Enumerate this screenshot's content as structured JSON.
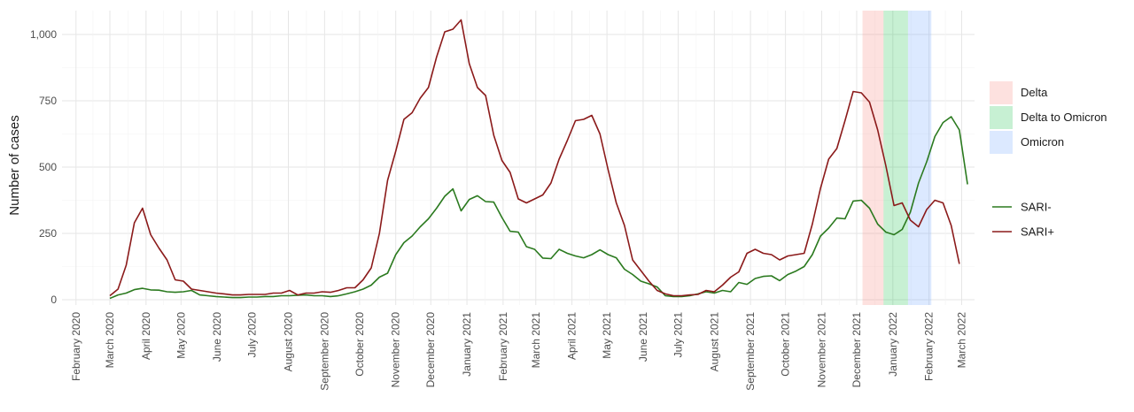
{
  "chart_data": {
    "type": "line",
    "title": "",
    "xlabel": "",
    "ylabel": "Number of cases",
    "ylim": [
      -20,
      1090
    ],
    "yticks": [
      0,
      250,
      500,
      750,
      1000
    ],
    "ytick_labels": [
      "0",
      "250",
      "500",
      "750",
      "1,000"
    ],
    "xlim": [
      "2020-01-20",
      "2022-03-12"
    ],
    "xticks": [
      "2020-02-01",
      "2020-03-01",
      "2020-04-01",
      "2020-05-01",
      "2020-06-01",
      "2020-07-01",
      "2020-08-01",
      "2020-09-01",
      "2020-10-01",
      "2020-11-01",
      "2020-12-01",
      "2021-01-01",
      "2021-02-01",
      "2021-03-01",
      "2021-04-01",
      "2021-05-01",
      "2021-06-01",
      "2021-07-01",
      "2021-08-01",
      "2021-09-01",
      "2021-10-01",
      "2021-11-01",
      "2021-12-01",
      "2022-01-01",
      "2022-02-01",
      "2022-03-01"
    ],
    "xtick_labels": [
      "February 2020",
      "March 2020",
      "April 2020",
      "May 2020",
      "June 2020",
      "July 2020",
      "August 2020",
      "September 2020",
      "October 2020",
      "November 2020",
      "December 2020",
      "January 2021",
      "February 2021",
      "March 2021",
      "April 2021",
      "May 2021",
      "June 2021",
      "July 2021",
      "August 2021",
      "September 2021",
      "October 2021",
      "November 2021",
      "December 2021",
      "January 2022",
      "February 2022",
      "March 2022"
    ],
    "grid": true,
    "legend_position": "right",
    "variant_periods": [
      {
        "name": "Delta",
        "start": "2021-12-06",
        "end": "2021-12-24",
        "color": "#f8766d"
      },
      {
        "name": "Delta to Omicron",
        "start": "2021-12-24",
        "end": "2022-01-14",
        "color": "#00ba38"
      },
      {
        "name": "Omicron",
        "start": "2022-01-14",
        "end": "2022-02-03",
        "color": "#619cff"
      }
    ],
    "series": [
      {
        "name": "SARI-",
        "color": "#2b7a1f",
        "values": [
          [
            "2020-03-01",
            5
          ],
          [
            "2020-03-08",
            18
          ],
          [
            "2020-03-15",
            25
          ],
          [
            "2020-03-22",
            38
          ],
          [
            "2020-03-29",
            43
          ],
          [
            "2020-04-05",
            37
          ],
          [
            "2020-04-12",
            36
          ],
          [
            "2020-04-19",
            30
          ],
          [
            "2020-04-26",
            28
          ],
          [
            "2020-05-03",
            30
          ],
          [
            "2020-05-10",
            35
          ],
          [
            "2020-05-17",
            18
          ],
          [
            "2020-05-24",
            15
          ],
          [
            "2020-05-31",
            12
          ],
          [
            "2020-06-07",
            10
          ],
          [
            "2020-06-14",
            8
          ],
          [
            "2020-06-21",
            8
          ],
          [
            "2020-06-28",
            10
          ],
          [
            "2020-07-05",
            10
          ],
          [
            "2020-07-12",
            12
          ],
          [
            "2020-07-19",
            12
          ],
          [
            "2020-07-26",
            15
          ],
          [
            "2020-08-02",
            15
          ],
          [
            "2020-08-09",
            17
          ],
          [
            "2020-08-16",
            18
          ],
          [
            "2020-08-23",
            15
          ],
          [
            "2020-08-30",
            15
          ],
          [
            "2020-09-06",
            12
          ],
          [
            "2020-09-13",
            15
          ],
          [
            "2020-09-20",
            22
          ],
          [
            "2020-09-27",
            30
          ],
          [
            "2020-10-04",
            40
          ],
          [
            "2020-10-11",
            55
          ],
          [
            "2020-10-18",
            85
          ],
          [
            "2020-10-25",
            100
          ],
          [
            "2020-11-01",
            170
          ],
          [
            "2020-11-08",
            215
          ],
          [
            "2020-11-15",
            240
          ],
          [
            "2020-11-22",
            275
          ],
          [
            "2020-11-29",
            305
          ],
          [
            "2020-12-06",
            345
          ],
          [
            "2020-12-13",
            390
          ],
          [
            "2020-12-20",
            418
          ],
          [
            "2020-12-27",
            335
          ],
          [
            "2021-01-03",
            378
          ],
          [
            "2021-01-10",
            392
          ],
          [
            "2021-01-17",
            370
          ],
          [
            "2021-01-24",
            368
          ],
          [
            "2021-01-31",
            310
          ],
          [
            "2021-02-07",
            258
          ],
          [
            "2021-02-14",
            255
          ],
          [
            "2021-02-21",
            200
          ],
          [
            "2021-02-28",
            190
          ],
          [
            "2021-03-07",
            157
          ],
          [
            "2021-03-14",
            155
          ],
          [
            "2021-03-21",
            190
          ],
          [
            "2021-03-28",
            175
          ],
          [
            "2021-04-04",
            165
          ],
          [
            "2021-04-11",
            158
          ],
          [
            "2021-04-18",
            170
          ],
          [
            "2021-04-25",
            188
          ],
          [
            "2021-05-02",
            170
          ],
          [
            "2021-05-09",
            158
          ],
          [
            "2021-05-16",
            115
          ],
          [
            "2021-05-23",
            95
          ],
          [
            "2021-05-30",
            70
          ],
          [
            "2021-06-06",
            60
          ],
          [
            "2021-06-13",
            48
          ],
          [
            "2021-06-20",
            15
          ],
          [
            "2021-06-27",
            12
          ],
          [
            "2021-07-04",
            12
          ],
          [
            "2021-07-11",
            15
          ],
          [
            "2021-07-18",
            22
          ],
          [
            "2021-07-25",
            30
          ],
          [
            "2021-08-01",
            25
          ],
          [
            "2021-08-08",
            35
          ],
          [
            "2021-08-15",
            30
          ],
          [
            "2021-08-22",
            65
          ],
          [
            "2021-08-29",
            58
          ],
          [
            "2021-09-05",
            80
          ],
          [
            "2021-09-12",
            88
          ],
          [
            "2021-09-19",
            90
          ],
          [
            "2021-09-26",
            72
          ],
          [
            "2021-10-03",
            95
          ],
          [
            "2021-10-10",
            108
          ],
          [
            "2021-10-17",
            125
          ],
          [
            "2021-10-24",
            170
          ],
          [
            "2021-10-31",
            240
          ],
          [
            "2021-11-07",
            270
          ],
          [
            "2021-11-14",
            308
          ],
          [
            "2021-11-21",
            305
          ],
          [
            "2021-11-28",
            372
          ],
          [
            "2021-12-05",
            375
          ],
          [
            "2021-12-12",
            345
          ],
          [
            "2021-12-19",
            285
          ],
          [
            "2021-12-26",
            255
          ],
          [
            "2022-01-02",
            245
          ],
          [
            "2022-01-09",
            265
          ],
          [
            "2022-01-16",
            330
          ],
          [
            "2022-01-23",
            440
          ],
          [
            "2022-01-30",
            520
          ],
          [
            "2022-02-06",
            615
          ],
          [
            "2022-02-13",
            668
          ],
          [
            "2022-02-20",
            690
          ],
          [
            "2022-02-27",
            640
          ],
          [
            "2022-03-06",
            435
          ]
        ]
      },
      {
        "name": "SARI+",
        "color": "#8b1a1a",
        "values": [
          [
            "2020-03-01",
            15
          ],
          [
            "2020-03-08",
            40
          ],
          [
            "2020-03-15",
            130
          ],
          [
            "2020-03-22",
            290
          ],
          [
            "2020-03-29",
            345
          ],
          [
            "2020-04-05",
            245
          ],
          [
            "2020-04-12",
            195
          ],
          [
            "2020-04-19",
            150
          ],
          [
            "2020-04-26",
            75
          ],
          [
            "2020-05-03",
            70
          ],
          [
            "2020-05-10",
            40
          ],
          [
            "2020-05-17",
            35
          ],
          [
            "2020-05-24",
            30
          ],
          [
            "2020-05-31",
            25
          ],
          [
            "2020-06-07",
            22
          ],
          [
            "2020-06-14",
            18
          ],
          [
            "2020-06-21",
            18
          ],
          [
            "2020-06-28",
            20
          ],
          [
            "2020-07-05",
            20
          ],
          [
            "2020-07-12",
            20
          ],
          [
            "2020-07-19",
            25
          ],
          [
            "2020-07-26",
            25
          ],
          [
            "2020-08-02",
            35
          ],
          [
            "2020-08-09",
            18
          ],
          [
            "2020-08-16",
            25
          ],
          [
            "2020-08-23",
            25
          ],
          [
            "2020-08-30",
            30
          ],
          [
            "2020-09-06",
            28
          ],
          [
            "2020-09-13",
            35
          ],
          [
            "2020-09-20",
            45
          ],
          [
            "2020-09-27",
            45
          ],
          [
            "2020-10-04",
            75
          ],
          [
            "2020-10-11",
            120
          ],
          [
            "2020-10-18",
            250
          ],
          [
            "2020-10-25",
            450
          ],
          [
            "2020-11-01",
            560
          ],
          [
            "2020-11-08",
            680
          ],
          [
            "2020-11-15",
            705
          ],
          [
            "2020-11-22",
            760
          ],
          [
            "2020-11-29",
            800
          ],
          [
            "2020-12-06",
            915
          ],
          [
            "2020-12-13",
            1010
          ],
          [
            "2020-12-20",
            1020
          ],
          [
            "2020-12-27",
            1055
          ],
          [
            "2021-01-03",
            890
          ],
          [
            "2021-01-10",
            800
          ],
          [
            "2021-01-17",
            770
          ],
          [
            "2021-01-24",
            620
          ],
          [
            "2021-01-31",
            525
          ],
          [
            "2021-02-07",
            480
          ],
          [
            "2021-02-14",
            380
          ],
          [
            "2021-02-21",
            365
          ],
          [
            "2021-02-28",
            380
          ],
          [
            "2021-03-07",
            395
          ],
          [
            "2021-03-14",
            440
          ],
          [
            "2021-03-21",
            530
          ],
          [
            "2021-03-28",
            600
          ],
          [
            "2021-04-04",
            675
          ],
          [
            "2021-04-11",
            680
          ],
          [
            "2021-04-18",
            695
          ],
          [
            "2021-04-25",
            625
          ],
          [
            "2021-05-02",
            490
          ],
          [
            "2021-05-09",
            365
          ],
          [
            "2021-05-16",
            280
          ],
          [
            "2021-05-23",
            150
          ],
          [
            "2021-05-30",
            110
          ],
          [
            "2021-06-06",
            70
          ],
          [
            "2021-06-13",
            35
          ],
          [
            "2021-06-20",
            22
          ],
          [
            "2021-06-27",
            15
          ],
          [
            "2021-07-04",
            15
          ],
          [
            "2021-07-11",
            18
          ],
          [
            "2021-07-18",
            20
          ],
          [
            "2021-07-25",
            35
          ],
          [
            "2021-08-01",
            30
          ],
          [
            "2021-08-08",
            55
          ],
          [
            "2021-08-15",
            85
          ],
          [
            "2021-08-22",
            105
          ],
          [
            "2021-08-29",
            175
          ],
          [
            "2021-09-05",
            190
          ],
          [
            "2021-09-12",
            175
          ],
          [
            "2021-09-19",
            170
          ],
          [
            "2021-09-26",
            150
          ],
          [
            "2021-10-03",
            165
          ],
          [
            "2021-10-10",
            170
          ],
          [
            "2021-10-17",
            175
          ],
          [
            "2021-10-24",
            285
          ],
          [
            "2021-10-31",
            420
          ],
          [
            "2021-11-07",
            530
          ],
          [
            "2021-11-14",
            570
          ],
          [
            "2021-11-21",
            675
          ],
          [
            "2021-11-28",
            785
          ],
          [
            "2021-12-05",
            780
          ],
          [
            "2021-12-12",
            745
          ],
          [
            "2021-12-19",
            640
          ],
          [
            "2021-12-26",
            505
          ],
          [
            "2022-01-02",
            355
          ],
          [
            "2022-01-09",
            365
          ],
          [
            "2022-01-16",
            300
          ],
          [
            "2022-01-23",
            275
          ],
          [
            "2022-01-30",
            340
          ],
          [
            "2022-02-06",
            375
          ],
          [
            "2022-02-13",
            365
          ],
          [
            "2022-02-20",
            280
          ],
          [
            "2022-02-27",
            135
          ]
        ]
      }
    ]
  }
}
